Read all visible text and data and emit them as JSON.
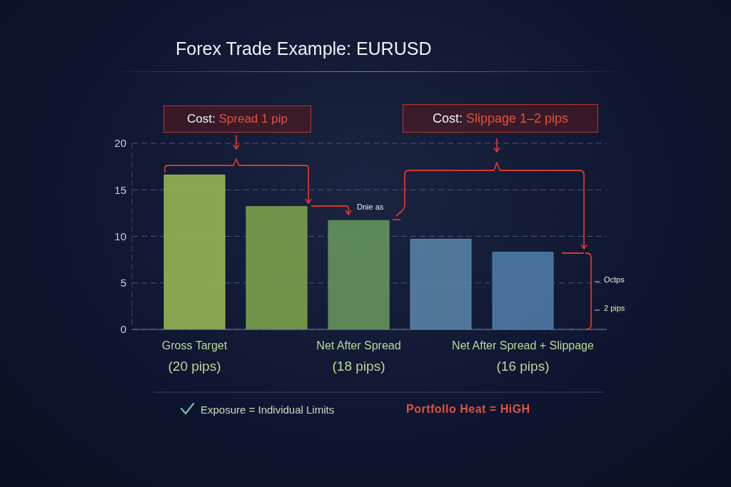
{
  "chart_data": {
    "type": "bar",
    "title": "Forex Trade Example: EURUSD",
    "categories": [
      "Gross Target\n(20 pips)",
      null,
      "Net After Spread\n(18 pips)",
      null,
      "Net After Spread + Slippage\n(16 pips)"
    ],
    "values": [
      16.6,
      13.2,
      11.7,
      9.7,
      8.3
    ],
    "colors": [
      "#9dbf55",
      "#7fa84c",
      "#6a9a5c",
      "#5a87ad",
      "#5180ab"
    ],
    "ylim": [
      0,
      20
    ],
    "yticks": [
      0,
      5,
      10,
      15,
      20
    ],
    "grid": "y",
    "legend": false,
    "annotations": [
      "Cost: Spread 1 pip",
      "Cost: Slippage 1–2 pips",
      "Dnie as",
      "Octps",
      "2 pips",
      "Exposure = Individual Limits",
      "Portfollo Heat = HiGH"
    ]
  }
}
